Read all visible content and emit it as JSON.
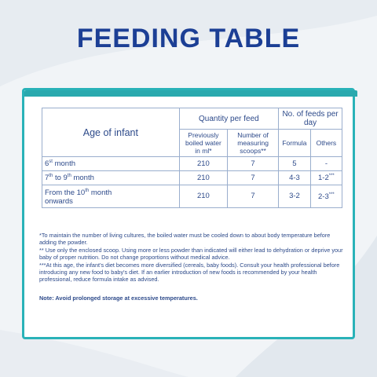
{
  "title": "FEEDING TABLE",
  "table": {
    "age_header": "Age of infant",
    "quantity_header": "Quantity per feed",
    "feeds_header": "No. of feeds per day",
    "water_header": "Previously boiled water in ml*",
    "scoops_header": "Number of measuring scoops**",
    "formula_header": "Formula",
    "others_header": "Others",
    "rows": [
      {
        "age_pre": "6",
        "age_sup": "st",
        "age_mid": " month",
        "age_sup2": "",
        "age_post": "",
        "water": "210",
        "scoops": "7",
        "formula": "5",
        "others": "-",
        "others_sup": ""
      },
      {
        "age_pre": "7",
        "age_sup": "th",
        "age_mid": " to 9",
        "age_sup2": "th",
        "age_post": " month",
        "water": "210",
        "scoops": "7",
        "formula": "4-3",
        "others": "1-2",
        "others_sup": "***"
      },
      {
        "age_pre": "From the 10",
        "age_sup": "th",
        "age_mid": " month",
        "age_sup2": "",
        "age_post": "onwards",
        "water": "210",
        "scoops": "7",
        "formula": "3-2",
        "others": "2-3",
        "others_sup": "***"
      }
    ]
  },
  "notes": [
    "*To maintain the number of living cultures, the boiled water must be cooled down to about body temperature before adding the powder.",
    "** Use only the enclosed scoop. Using more or less powder than indicated will either lead to dehydration or deprive your baby of proper nutrition. Do not change proportions without medical advice.",
    "***At this age, the infant's diet becomes more diversified (cereals, baby foods). Consult your health professional before introducing any new food to baby's diet. If an earlier introduction of new foods is recommended by your health professional, reduce formula intake as advised."
  ],
  "final_note": "Note: Avoid prolonged storage at excessive temperatures.",
  "colors": {
    "title": "#1c3f95",
    "frame": "#29b2b8",
    "text": "#2d4a8a"
  }
}
